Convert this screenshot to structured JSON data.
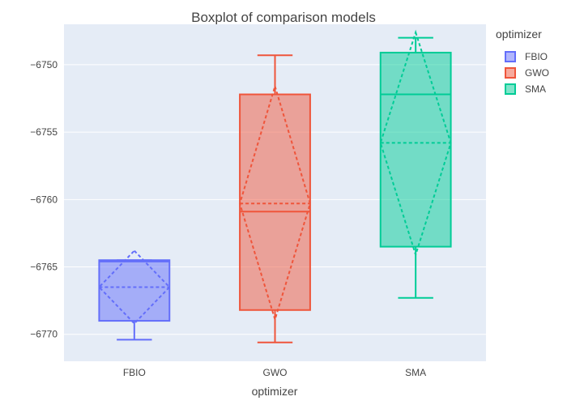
{
  "chart_data": {
    "type": "box",
    "title": "Boxplot of comparison models",
    "xlabel": "optimizer",
    "ylabel": "",
    "ylim": [
      -6772,
      -6747
    ],
    "yticks": [
      -6770,
      -6765,
      -6760,
      -6755,
      -6750
    ],
    "ytick_labels": [
      "−6770",
      "−6765",
      "−6760",
      "−6755",
      "−6750"
    ],
    "categories": [
      "FBIO",
      "GWO",
      "SMA"
    ],
    "legend": {
      "title": "optimizer",
      "placement": "top-right"
    },
    "grid": true,
    "series": [
      {
        "name": "FBIO",
        "color": "#636efa",
        "min": -6770.4,
        "q1": -6769.0,
        "median": -6764.6,
        "q3": -6764.5,
        "max": -6764.5,
        "mean": -6766.5,
        "sd_low": -6769.2,
        "sd_high": -6763.8
      },
      {
        "name": "GWO",
        "color": "#ef553b",
        "min": -6770.6,
        "q1": -6768.2,
        "median": -6760.9,
        "q3": -6752.2,
        "max": -6749.3,
        "mean": -6760.3,
        "sd_low": -6768.9,
        "sd_high": -6751.6
      },
      {
        "name": "SMA",
        "color": "#00cc96",
        "min": -6767.3,
        "q1": -6763.5,
        "median": -6752.2,
        "q3": -6749.1,
        "max": -6748.0,
        "mean": -6755.8,
        "sd_low": -6764.1,
        "sd_high": -6747.6
      }
    ]
  }
}
